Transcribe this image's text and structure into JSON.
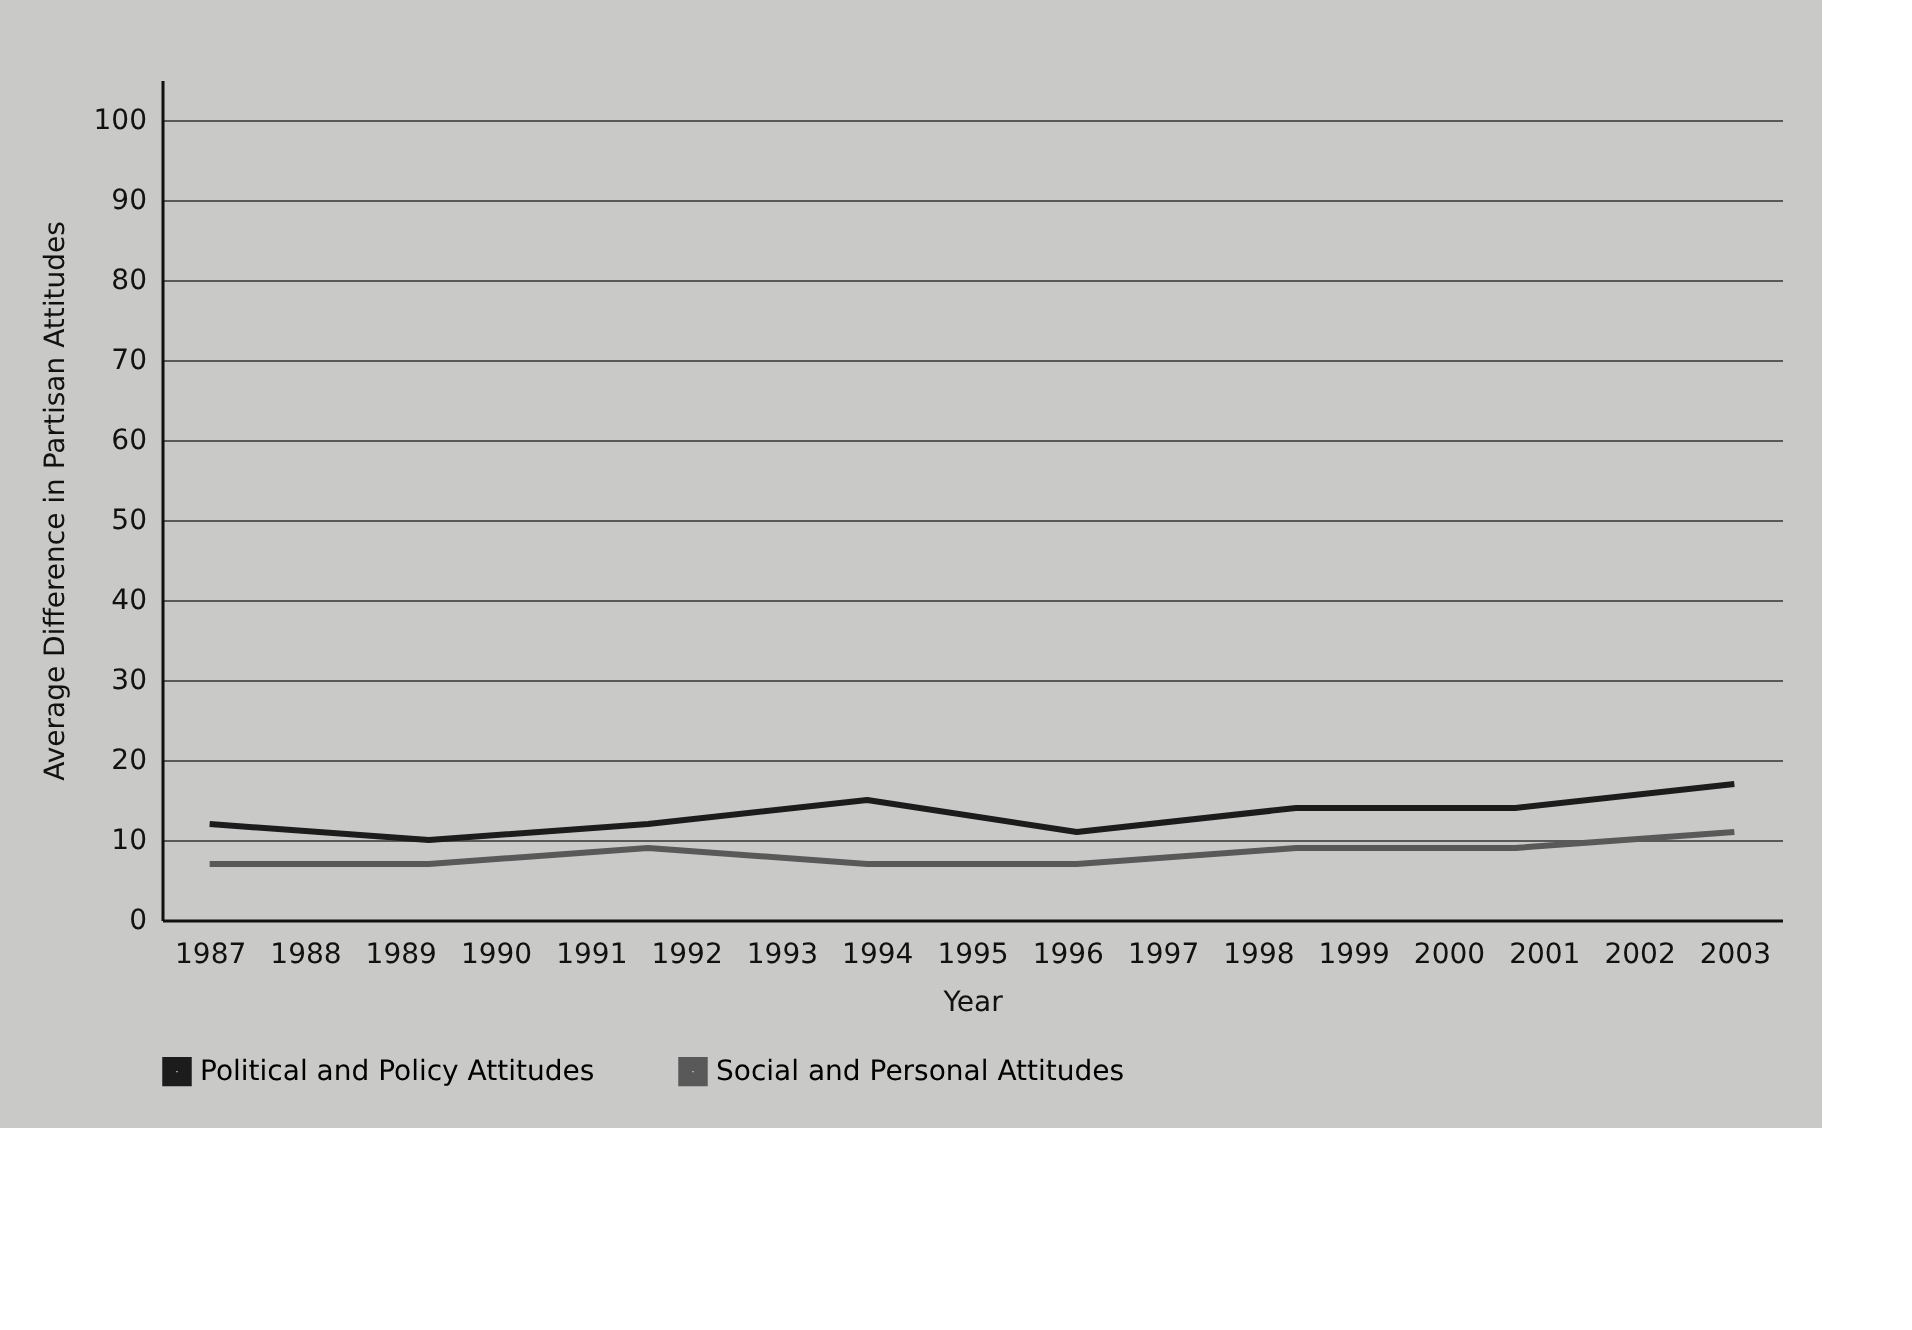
{
  "chart_data": {
    "type": "line",
    "xlabel": "Year",
    "ylabel": "Average  Difference in Partisan Attitudes",
    "x": [
      1987,
      1989.3,
      1991.6,
      1993.9,
      1996.1,
      1998.4,
      2000.7,
      2003
    ],
    "series": [
      {
        "name": "Political and Policy Attitudes",
        "color": "#1c1c1c",
        "values": [
          12,
          10,
          12,
          15,
          11,
          14,
          14,
          17
        ]
      },
      {
        "name": "Social and Personal Attitudes",
        "color": "#595959",
        "values": [
          7,
          7,
          9,
          7,
          7,
          9,
          9,
          11
        ]
      }
    ],
    "xlim": [
      1986.5,
      2003.5
    ],
    "xticks": [
      1987,
      1988,
      1989,
      1990,
      1991,
      1992,
      1993,
      1994,
      1995,
      1996,
      1997,
      1998,
      1999,
      2000,
      2001,
      2002,
      2003
    ],
    "ylim": [
      0,
      105
    ],
    "yticks": [
      0,
      10,
      20,
      30,
      40,
      50,
      60,
      70,
      80,
      90,
      100
    ],
    "grid": "y",
    "legend": "bottom left",
    "marker": "none",
    "line_style": "solid"
  }
}
